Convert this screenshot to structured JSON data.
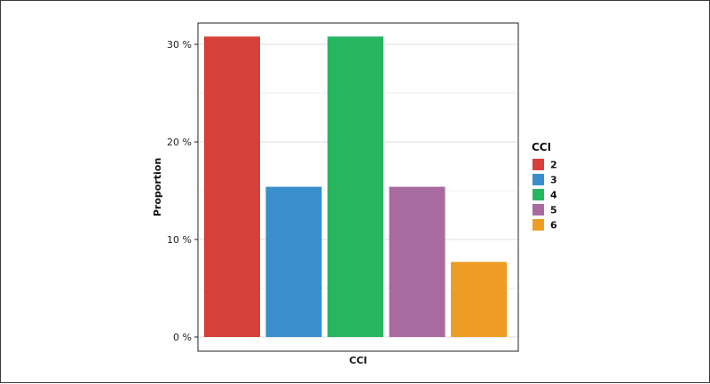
{
  "chart_data": {
    "type": "bar",
    "categories": [
      "2",
      "3",
      "4",
      "5",
      "6"
    ],
    "values": [
      30.8,
      15.4,
      30.8,
      15.4,
      7.7
    ],
    "colors": [
      "#d6403a",
      "#3a8ecc",
      "#27b560",
      "#a86ba0",
      "#ee9d24"
    ],
    "xlabel": "CCI",
    "ylabel": "Proportion",
    "ylim": [
      0,
      32.3
    ],
    "yticks": [
      0,
      10,
      20,
      30
    ],
    "ytick_labels": [
      "0 %",
      "10 %",
      "20 %",
      "30 %"
    ],
    "grid": true,
    "legend": {
      "title": "CCI",
      "placement": "right",
      "entries": [
        "2",
        "3",
        "4",
        "5",
        "6"
      ]
    }
  }
}
